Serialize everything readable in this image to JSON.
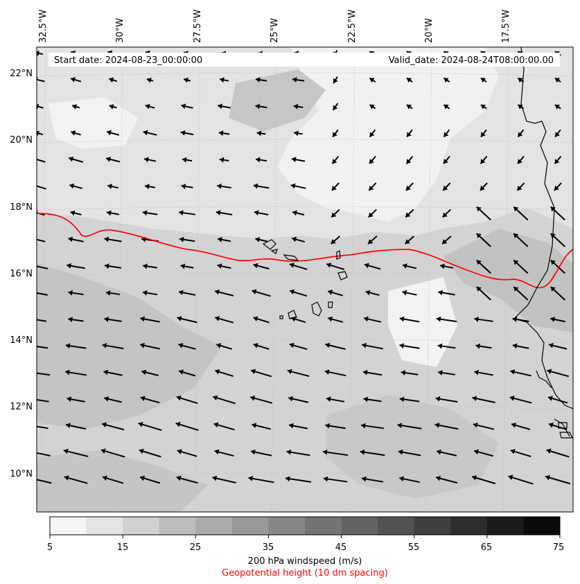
{
  "header": {
    "start_date": "Start date: 2024-08-23_00:00:00",
    "valid_date": "Valid_date: 2024-08-24T08:00:00.00"
  },
  "longitude_labels": [
    "32.5°W",
    "30°W",
    "27.5°W",
    "25°W",
    "22.5°W",
    "20°W",
    "17.5°W"
  ],
  "latitude_labels": [
    "22°N",
    "20°N",
    "18°N",
    "16°N",
    "14°N",
    "12°N",
    "10°N"
  ],
  "colorbar": {
    "title": "200 hPa windspeed (m/s)",
    "subtitle": "Geopotential height (10 dm spacing)",
    "tick_labels": [
      "5",
      "15",
      "25",
      "35",
      "45",
      "55",
      "65",
      "75"
    ],
    "levels": [
      5,
      10,
      15,
      20,
      25,
      30,
      35,
      40,
      45,
      50,
      55,
      60,
      65,
      70,
      75
    ],
    "colors": [
      "#f5f5f5",
      "#e3e3e3",
      "#d1d1d1",
      "#bdbdbd",
      "#ababab",
      "#999999",
      "#878787",
      "#747474",
      "#636363",
      "#525252",
      "#3f3f3f",
      "#2d2d2d",
      "#1b1b1b",
      "#0a0a0a"
    ]
  },
  "colors": {
    "height_contour": "#ff0000",
    "coastline": "#000000",
    "vectors": "#000000",
    "gridlines": "#bbbbbb"
  }
}
